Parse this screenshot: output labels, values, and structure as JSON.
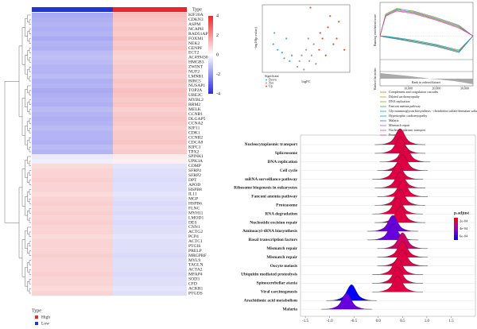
{
  "chart_data": [
    {
      "type": "heatmap",
      "legend_title": "Type",
      "genes": [
        "KIF20A",
        "CDKN3",
        "ASPM",
        "NCAPH",
        "RAD51AP1",
        "FOXM1",
        "NEK2",
        "CENPF",
        "ECT2",
        "AC499430.4",
        "HMGB3",
        "ZWINT",
        "NUF2",
        "LMNB1",
        "BIRC5",
        "NUSAP1",
        "TOP2A",
        "UBE2C",
        "MYBL2",
        "RRM2",
        "MELK",
        "CCNB1",
        "DLGAP5",
        "CCNA2",
        "KIF11",
        "CDK1",
        "CCNB2",
        "CDCA8",
        "KIFC1",
        "TPX2",
        "SPINK1",
        "UPK3A",
        "COMP",
        "SFRP4",
        "SFRP2",
        "DPT",
        "APOD",
        "HSPB8",
        "IL11",
        "MGP",
        "HSPB6",
        "FLNC",
        "MYH11",
        "LMOD1",
        "DES",
        "CNN1",
        "ACTG2",
        "PCP4",
        "ACTC1",
        "PTGIS",
        "PRELP",
        "MRGPRF",
        "MYL9",
        "TAGLN",
        "ACTA2",
        "MFAP4",
        "SOD3",
        "CFD",
        "ACKR1",
        "PTGDS"
      ],
      "series": [
        {
          "name": "High",
          "color": "#e8262b",
          "values": [
            1.2,
            1.1,
            1.0,
            1.1,
            1.0,
            1.2,
            1.0,
            1.1,
            0.9,
            0.8,
            0.9,
            1.0,
            1.0,
            0.9,
            1.1,
            1.0,
            1.2,
            1.1,
            1.0,
            1.1,
            0.9,
            1.0,
            1.1,
            1.0,
            0.9,
            1.0,
            1.0,
            1.1,
            0.9,
            1.0,
            0.4,
            0.3,
            -0.5,
            -0.6,
            -0.6,
            -0.7,
            -0.6,
            -0.6,
            -0.5,
            -0.6,
            -0.7,
            -0.6,
            -0.7,
            -0.6,
            -0.7,
            -0.6,
            -0.6,
            -0.5,
            -0.6,
            -0.6,
            -0.6,
            -0.7,
            -0.6,
            -0.6,
            -0.6,
            -0.7,
            -0.6,
            -0.6,
            -0.5,
            -0.6
          ]
        },
        {
          "name": "Low",
          "color": "#1f35d6",
          "values": [
            -1.6,
            -1.5,
            -1.4,
            -1.5,
            -1.4,
            -1.6,
            -1.4,
            -1.5,
            -1.3,
            -1.2,
            -1.3,
            -1.4,
            -1.4,
            -1.3,
            -1.5,
            -1.4,
            -1.6,
            -1.5,
            -1.4,
            -1.5,
            -1.3,
            -1.4,
            -1.5,
            -1.4,
            -1.3,
            -1.4,
            -1.4,
            -1.5,
            -1.3,
            -1.4,
            -0.4,
            -0.3,
            0.7,
            0.8,
            0.8,
            0.9,
            0.8,
            0.8,
            0.7,
            0.8,
            0.9,
            0.8,
            0.9,
            0.8,
            0.9,
            0.8,
            0.8,
            0.7,
            0.8,
            0.8,
            0.8,
            0.9,
            0.8,
            0.8,
            0.8,
            0.9,
            0.8,
            0.8,
            0.7,
            0.8
          ]
        }
      ],
      "clim": [
        -4,
        4
      ],
      "cticks": [
        4,
        2,
        0,
        -2,
        -4
      ],
      "colorscale": [
        "#2a2ae0",
        "#ffffff",
        "#e82a2a"
      ]
    },
    {
      "type": "scatter",
      "xlabel": "logFC",
      "ylabel": "-log10(p value)",
      "legend_title": "Significant",
      "xlim": [
        -4,
        4
      ],
      "ylim": [
        0,
        12
      ],
      "series": [
        {
          "name": "Down",
          "color": "#3aaee0",
          "x": [
            -3,
            -2.6,
            -2.2,
            -1.8,
            -1.5,
            -2.9,
            -2.0,
            -1.3
          ],
          "y": [
            5,
            4,
            3.5,
            6,
            2,
            7,
            2.5,
            3
          ]
        },
        {
          "name": "Not",
          "color": "#9a9a9a",
          "x": [
            -0.8,
            -0.4,
            0,
            0.3,
            0.7,
            0.9,
            -0.6,
            0.2,
            0.5,
            -0.2
          ],
          "y": [
            1,
            3,
            4,
            2,
            5,
            1.5,
            2,
            6,
            3,
            0.5
          ]
        },
        {
          "name": "Up",
          "color": "#e0522a",
          "x": [
            1.2,
            1.5,
            2,
            2.5,
            3,
            1.8,
            2.2,
            1.3,
            2.8,
            3.5,
            0.4
          ],
          "y": [
            4,
            6,
            8,
            5,
            9,
            3,
            10,
            7,
            6,
            4,
            11.5
          ]
        }
      ]
    },
    {
      "type": "line",
      "ylabel": "Running enrichment score",
      "y2label": "Ranked list metric",
      "xlabel": "Rank in ordered dataset",
      "x": [
        0,
        2000,
        6000,
        12000,
        20000,
        28000,
        33000
      ],
      "xlim": [
        0,
        33000
      ],
      "ylim": [
        -0.6,
        0.9
      ],
      "xticks": [
        {
          "value": 10000,
          "label": "10,000"
        },
        {
          "value": 20000,
          "label": "20,000"
        },
        {
          "value": 30000,
          "label": "30,000"
        }
      ],
      "series": [
        {
          "name": "Complement and coagulation cascades",
          "color": "#e07020",
          "values": [
            0,
            -0.02,
            -0.06,
            -0.14,
            -0.26,
            -0.42,
            0
          ]
        },
        {
          "name": "Dilated cardiomyopathy",
          "color": "#c8a000",
          "values": [
            0,
            -0.03,
            -0.08,
            -0.16,
            -0.28,
            -0.45,
            0
          ]
        },
        {
          "name": "DNA replication",
          "color": "#80b000",
          "values": [
            0,
            0.62,
            0.78,
            0.68,
            0.5,
            0.28,
            0
          ]
        },
        {
          "name": "Fanconi anemia pathway",
          "color": "#20b050",
          "values": [
            0,
            0.58,
            0.74,
            0.66,
            0.48,
            0.26,
            0
          ]
        },
        {
          "name": "Glycosaminoglycan biosynthesis - chondroitin sulfate/dermatan sulfate",
          "color": "#00b0a0",
          "values": [
            0,
            -0.01,
            -0.05,
            -0.12,
            -0.24,
            -0.4,
            0
          ]
        },
        {
          "name": "Hypertrophic cardiomyopathy",
          "color": "#00a0d0",
          "values": [
            0,
            -0.02,
            -0.07,
            -0.15,
            -0.27,
            -0.44,
            0
          ]
        },
        {
          "name": "Malaria",
          "color": "#4070e0",
          "values": [
            0,
            -0.04,
            -0.09,
            -0.18,
            -0.3,
            -0.47,
            0
          ]
        },
        {
          "name": "Mismatch repair",
          "color": "#9060e0",
          "values": [
            0,
            0.6,
            0.76,
            0.7,
            0.52,
            0.3,
            0
          ]
        },
        {
          "name": "Nucleocytoplasmic transport",
          "color": "#d050c0",
          "values": [
            0,
            0.55,
            0.72,
            0.64,
            0.46,
            0.24,
            0
          ]
        },
        {
          "name": "Proteasome",
          "color": "#e04080",
          "values": [
            0,
            0.57,
            0.7,
            0.62,
            0.44,
            0.22,
            0
          ]
        }
      ]
    },
    {
      "type": "ridge",
      "legend_title": "p.adjust",
      "categories": [
        "Nucleocytoplasmic transport",
        "Spliceosome",
        "DNA replication",
        "Cell cycle",
        "mRNA surveillance pathway",
        "Ribosome biogenesis in eukaryotes",
        "Fanconi anemia pathway",
        "Proteasome",
        "RNA degradation",
        "Nucleotide excision repair",
        "Aminoacyl-tRNA biosynthesis",
        "Basal transcription factors",
        "Mismatch repair",
        "Mismatch repair",
        "Oocyte meiosis",
        "Ubiquitin mediated proteolysis",
        "Spinocerebellar ataxia",
        "Viral carcinogenesis",
        "Arachidonic acid metabolism",
        "Malaria"
      ],
      "values": [
        0.45,
        0.45,
        0.55,
        0.5,
        0.4,
        0.45,
        0.5,
        0.45,
        0.4,
        0.45,
        0.3,
        0.3,
        0.5,
        0.5,
        0.5,
        0.4,
        0.4,
        0.4,
        -0.55,
        -0.65
      ],
      "p_adjust": [
        0.0002,
        0.0002,
        0.0002,
        0.0002,
        0.0002,
        0.0002,
        0.0002,
        0.0002,
        0.0002,
        0.0002,
        0.0005,
        0.0005,
        0.00025,
        0.0002,
        0.0002,
        0.0002,
        0.0002,
        0.0002,
        0.0007,
        0.0005
      ],
      "xlim": [
        -1.6,
        2.0
      ],
      "xticks": [
        -1.5,
        {
          "value": -1,
          "label": "-1.0"
        },
        -0.5,
        {
          "value": 0,
          "label": "0.0"
        },
        0.5,
        {
          "value": 1,
          "label": "1.0"
        },
        1.5
      ],
      "clim": [
        0.0001,
        0.0007
      ],
      "cticks": [
        {
          "value": 0.0002,
          "label": "2e-04"
        },
        {
          "value": 0.0004,
          "label": "4e-04"
        },
        {
          "value": 0.0006,
          "label": "6e-04"
        }
      ],
      "colorscale": [
        "#ff0000",
        "#9a00c8",
        "#0000ff"
      ]
    }
  ]
}
